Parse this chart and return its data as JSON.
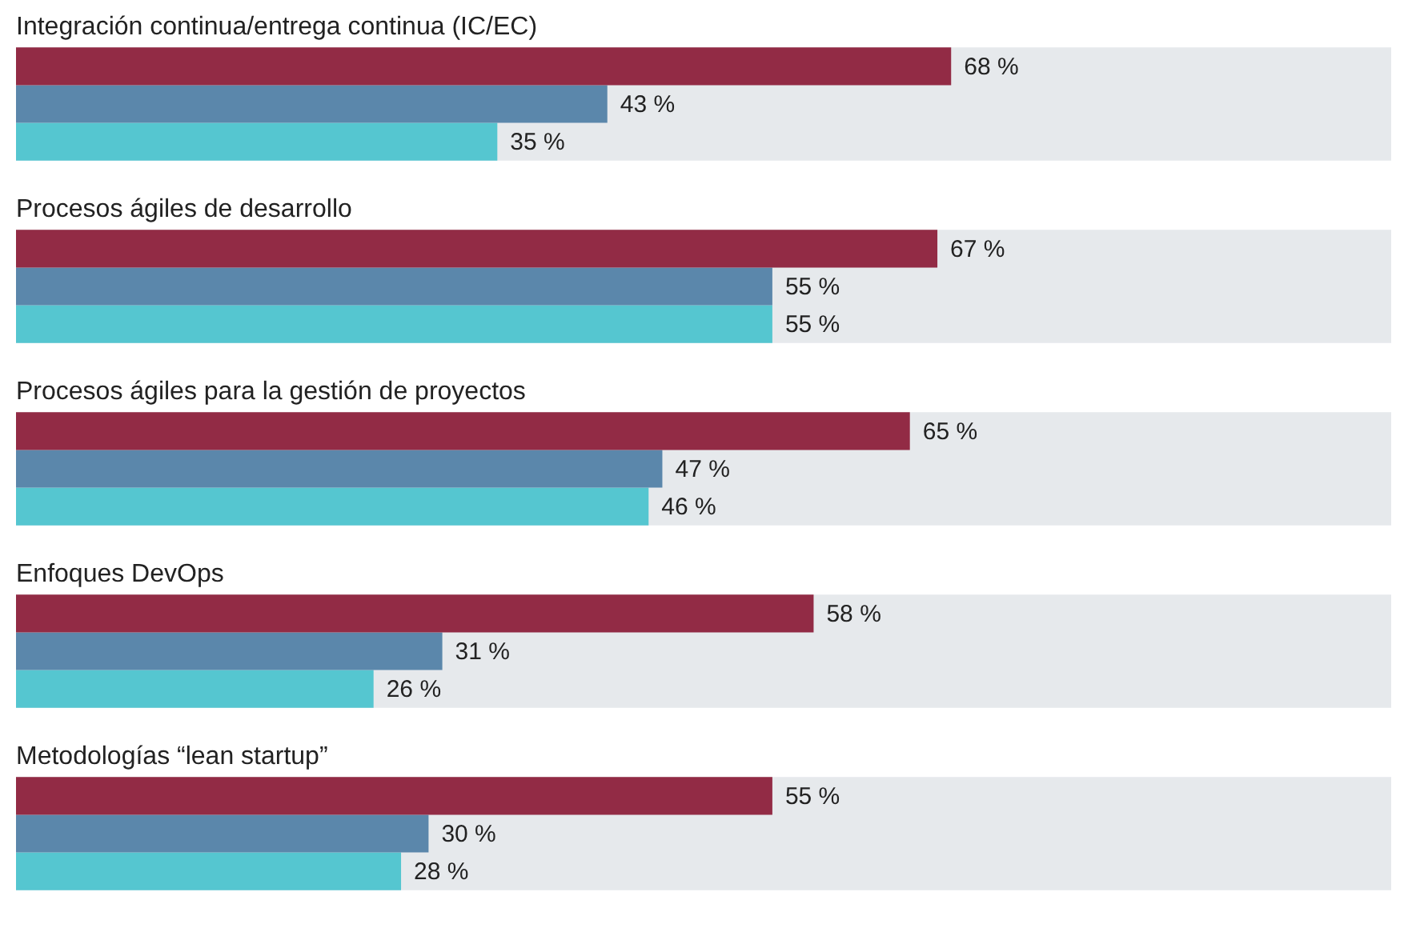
{
  "chart_data": {
    "type": "bar",
    "orientation": "horizontal",
    "categories": [
      "Integración continua/entrega continua (IC/EC)",
      "Procesos ágiles de desarrollo",
      "Procesos ágiles para la gestión de proyectos",
      "Enfoques DevOps",
      "Metodologías “lean startup”"
    ],
    "series": [
      {
        "color": "#922b45",
        "values": [
          68,
          67,
          65,
          58,
          55
        ],
        "value_labels": [
          "68 %",
          "67 %",
          "65 %",
          "58 %",
          "55 %"
        ]
      },
      {
        "color": "#5b87ab",
        "values": [
          43,
          55,
          47,
          31,
          30
        ],
        "value_labels": [
          "43 %",
          "55 %",
          "47 %",
          "31 %",
          "30 %"
        ]
      },
      {
        "color": "#55c6d0",
        "values": [
          35,
          55,
          46,
          26,
          28
        ],
        "value_labels": [
          "35 %",
          "55 %",
          "46 %",
          "26 %",
          "28 %"
        ]
      }
    ],
    "bands": [
      {
        "axis": "x",
        "from": 0,
        "to": 100,
        "color": "#e6e9ec"
      },
      {
        "axis": "x",
        "from": 0,
        "to": 100,
        "color": "#e6e9ec"
      },
      {
        "axis": "x",
        "from": 0,
        "to": 100,
        "color": "#e6e9ec"
      },
      {
        "axis": "x",
        "from": 0,
        "to": 100,
        "color": "#e6e9ec"
      },
      {
        "axis": "x",
        "from": 0,
        "to": 100,
        "color": "#e6e9ec"
      }
    ],
    "xlim": [
      0,
      100
    ],
    "tick_labels": false
  }
}
